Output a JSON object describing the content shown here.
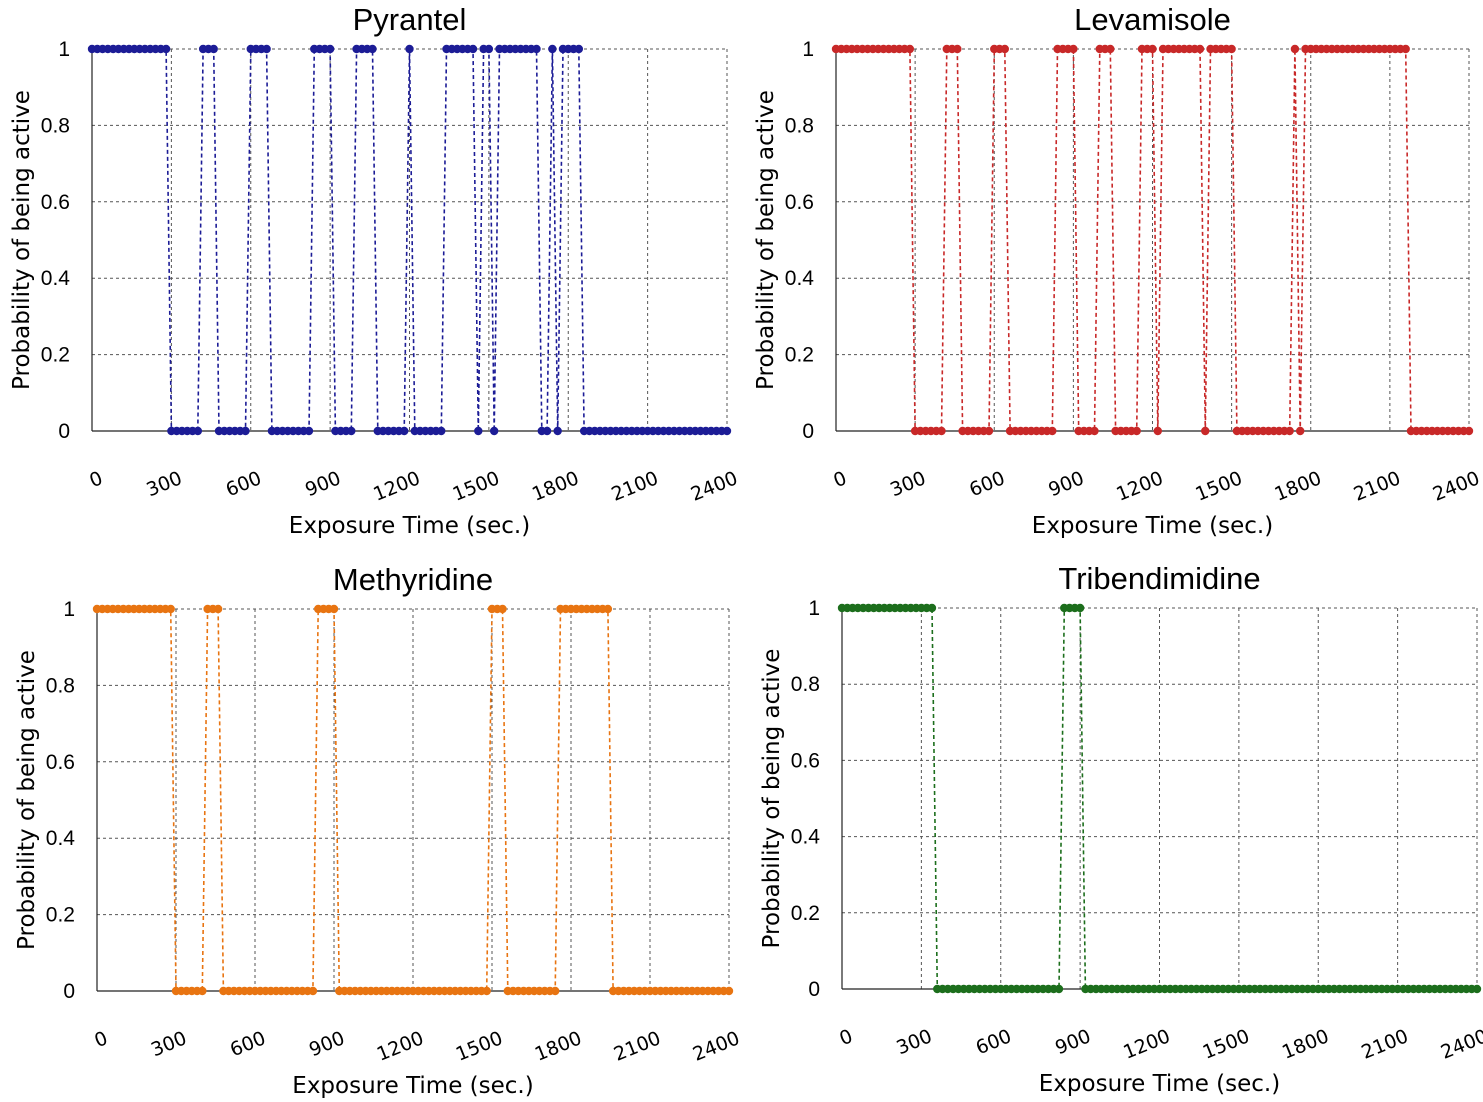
{
  "chart_data": [
    {
      "type": "line",
      "title": "Pyrantel",
      "xlabel": "Exposure Time (sec.)",
      "ylabel": "Probability of being active",
      "xlim": [
        0,
        2400
      ],
      "ylim": [
        0,
        1
      ],
      "x_ticks": [
        "0",
        "300",
        "600",
        "900",
        "1200",
        "1500",
        "1800",
        "2100",
        "2400"
      ],
      "y_ticks": [
        "0",
        "0.2",
        "0.4",
        "0.6",
        "0.8",
        "1"
      ],
      "grid": true,
      "color": "#1c1c96",
      "series": [
        {
          "x": [
            0,
            20,
            40,
            60,
            80,
            100,
            120,
            140,
            160,
            180,
            200,
            220,
            240,
            260,
            280,
            300,
            320,
            340,
            360,
            380,
            400,
            420,
            440,
            460,
            480,
            500,
            520,
            540,
            560,
            580,
            600,
            620,
            640,
            660,
            680,
            700,
            720,
            740,
            760,
            780,
            800,
            820,
            840,
            860,
            880,
            900,
            920,
            940,
            960,
            980,
            1000,
            1020,
            1040,
            1060,
            1080,
            1100,
            1120,
            1140,
            1160,
            1180,
            1200,
            1220,
            1240,
            1260,
            1280,
            1300,
            1320,
            1340,
            1360,
            1380,
            1400,
            1420,
            1440,
            1460,
            1480,
            1500,
            1520,
            1540,
            1560,
            1580,
            1600,
            1620,
            1640,
            1660,
            1680,
            1700,
            1720,
            1740,
            1760,
            1780,
            1800,
            1820,
            1840,
            1860,
            1880,
            1900,
            1920,
            1940,
            1960,
            1980,
            2000,
            2020,
            2040,
            2060,
            2080,
            2100,
            2120,
            2140,
            2160,
            2180,
            2200,
            2220,
            2240,
            2260,
            2280,
            2300,
            2320,
            2340,
            2360,
            2380,
            2400
          ],
          "y": [
            1,
            1,
            1,
            1,
            1,
            1,
            1,
            1,
            1,
            1,
            1,
            1,
            1,
            1,
            1,
            0,
            0,
            0,
            0,
            0,
            0,
            1,
            1,
            1,
            0,
            0,
            0,
            0,
            0,
            0,
            1,
            1,
            1,
            1,
            0,
            0,
            0,
            0,
            0,
            0,
            0,
            0,
            1,
            1,
            1,
            1,
            0,
            0,
            0,
            0,
            1,
            1,
            1,
            1,
            0,
            0,
            0,
            0,
            0,
            0,
            1,
            0,
            0,
            0,
            0,
            0,
            0,
            1,
            1,
            1,
            1,
            1,
            1,
            0,
            1,
            1,
            0,
            1,
            1,
            1,
            1,
            1,
            1,
            1,
            1,
            0,
            0,
            1,
            0,
            1,
            1,
            1,
            1,
            0,
            0,
            0,
            0,
            0,
            0,
            0,
            0,
            0,
            0,
            0,
            0,
            0,
            0,
            0,
            0,
            0,
            0,
            0,
            0,
            0,
            0,
            0,
            0,
            0,
            0,
            0,
            0
          ]
        }
      ]
    },
    {
      "type": "line",
      "title": "Levamisole",
      "xlabel": "Exposure Time (sec.)",
      "ylabel": "Probability of being active",
      "xlim": [
        0,
        2400
      ],
      "ylim": [
        0,
        1
      ],
      "x_ticks": [
        "0",
        "300",
        "600",
        "900",
        "1200",
        "1500",
        "1800",
        "2100",
        "2400"
      ],
      "y_ticks": [
        "0",
        "0.2",
        "0.4",
        "0.6",
        "0.8",
        "1"
      ],
      "grid": true,
      "color": "#c82828",
      "series": [
        {
          "x": [
            0,
            20,
            40,
            60,
            80,
            100,
            120,
            140,
            160,
            180,
            200,
            220,
            240,
            260,
            280,
            300,
            320,
            340,
            360,
            380,
            400,
            420,
            440,
            460,
            480,
            500,
            520,
            540,
            560,
            580,
            600,
            620,
            640,
            660,
            680,
            700,
            720,
            740,
            760,
            780,
            800,
            820,
            840,
            860,
            880,
            900,
            920,
            940,
            960,
            980,
            1000,
            1020,
            1040,
            1060,
            1080,
            1100,
            1120,
            1140,
            1160,
            1180,
            1200,
            1220,
            1240,
            1260,
            1280,
            1300,
            1320,
            1340,
            1360,
            1380,
            1400,
            1420,
            1440,
            1460,
            1480,
            1500,
            1520,
            1540,
            1560,
            1580,
            1600,
            1620,
            1640,
            1660,
            1680,
            1700,
            1720,
            1740,
            1760,
            1780,
            1800,
            1820,
            1840,
            1860,
            1880,
            1900,
            1920,
            1940,
            1960,
            1980,
            2000,
            2020,
            2040,
            2060,
            2080,
            2100,
            2120,
            2140,
            2160,
            2180,
            2200,
            2220,
            2240,
            2260,
            2280,
            2300,
            2320,
            2340,
            2360,
            2380,
            2400
          ],
          "y": [
            1,
            1,
            1,
            1,
            1,
            1,
            1,
            1,
            1,
            1,
            1,
            1,
            1,
            1,
            1,
            0,
            0,
            0,
            0,
            0,
            0,
            1,
            1,
            1,
            0,
            0,
            0,
            0,
            0,
            0,
            1,
            1,
            1,
            0,
            0,
            0,
            0,
            0,
            0,
            0,
            0,
            0,
            1,
            1,
            1,
            1,
            0,
            0,
            0,
            0,
            1,
            1,
            1,
            0,
            0,
            0,
            0,
            0,
            1,
            1,
            1,
            0,
            1,
            1,
            1,
            1,
            1,
            1,
            1,
            1,
            0,
            1,
            1,
            1,
            1,
            1,
            0,
            0,
            0,
            0,
            0,
            0,
            0,
            0,
            0,
            0,
            0,
            1,
            0,
            1,
            1,
            1,
            1,
            1,
            1,
            1,
            1,
            1,
            1,
            1,
            1,
            1,
            1,
            1,
            1,
            1,
            1,
            1,
            1,
            0,
            0,
            0,
            0,
            0,
            0,
            0,
            0,
            0,
            0,
            0,
            0
          ]
        }
      ]
    },
    {
      "type": "line",
      "title": "Methyridine",
      "xlabel": "Exposure Time (sec.)",
      "ylabel": "Probability of being active",
      "xlim": [
        0,
        2400
      ],
      "ylim": [
        0,
        1
      ],
      "x_ticks": [
        "0",
        "300",
        "600",
        "900",
        "1200",
        "1500",
        "1800",
        "2100",
        "2400"
      ],
      "y_ticks": [
        "0",
        "0.2",
        "0.4",
        "0.6",
        "0.8",
        "1"
      ],
      "grid": true,
      "color": "#e87411",
      "series": [
        {
          "x": [
            0,
            20,
            40,
            60,
            80,
            100,
            120,
            140,
            160,
            180,
            200,
            220,
            240,
            260,
            280,
            300,
            320,
            340,
            360,
            380,
            400,
            420,
            440,
            460,
            480,
            500,
            520,
            540,
            560,
            580,
            600,
            620,
            640,
            660,
            680,
            700,
            720,
            740,
            760,
            780,
            800,
            820,
            840,
            860,
            880,
            900,
            920,
            940,
            960,
            980,
            1000,
            1020,
            1040,
            1060,
            1080,
            1100,
            1120,
            1140,
            1160,
            1180,
            1200,
            1220,
            1240,
            1260,
            1280,
            1300,
            1320,
            1340,
            1360,
            1380,
            1400,
            1420,
            1440,
            1460,
            1480,
            1500,
            1520,
            1540,
            1560,
            1580,
            1600,
            1620,
            1640,
            1660,
            1680,
            1700,
            1720,
            1740,
            1760,
            1780,
            1800,
            1820,
            1840,
            1860,
            1880,
            1900,
            1920,
            1940,
            1960,
            1980,
            2000,
            2020,
            2040,
            2060,
            2080,
            2100,
            2120,
            2140,
            2160,
            2180,
            2200,
            2220,
            2240,
            2260,
            2280,
            2300,
            2320,
            2340,
            2360,
            2380,
            2400
          ],
          "y": [
            1,
            1,
            1,
            1,
            1,
            1,
            1,
            1,
            1,
            1,
            1,
            1,
            1,
            1,
            1,
            0,
            0,
            0,
            0,
            0,
            0,
            1,
            1,
            1,
            0,
            0,
            0,
            0,
            0,
            0,
            0,
            0,
            0,
            0,
            0,
            0,
            0,
            0,
            0,
            0,
            0,
            0,
            1,
            1,
            1,
            1,
            0,
            0,
            0,
            0,
            0,
            0,
            0,
            0,
            0,
            0,
            0,
            0,
            0,
            0,
            0,
            0,
            0,
            0,
            0,
            0,
            0,
            0,
            0,
            0,
            0,
            0,
            0,
            0,
            0,
            1,
            1,
            1,
            0,
            0,
            0,
            0,
            0,
            0,
            0,
            0,
            0,
            0,
            1,
            1,
            1,
            1,
            1,
            1,
            1,
            1,
            1,
            1,
            0,
            0,
            0,
            0,
            0,
            0,
            0,
            0,
            0,
            0,
            0,
            0,
            0,
            0,
            0,
            0,
            0,
            0,
            0,
            0,
            0,
            0,
            0
          ]
        }
      ]
    },
    {
      "type": "line",
      "title": "Tribendimidine",
      "xlabel": "Exposure Time (sec.)",
      "ylabel": "Probability of being active",
      "xlim": [
        0,
        2400
      ],
      "ylim": [
        0,
        1
      ],
      "x_ticks": [
        "0",
        "300",
        "600",
        "900",
        "1200",
        "1500",
        "1800",
        "2100",
        "2400"
      ],
      "y_ticks": [
        "0",
        "0.2",
        "0.4",
        "0.6",
        "0.8",
        "1"
      ],
      "grid": true,
      "color": "#1c6e1c",
      "series": [
        {
          "x": [
            0,
            20,
            40,
            60,
            80,
            100,
            120,
            140,
            160,
            180,
            200,
            220,
            240,
            260,
            280,
            300,
            320,
            340,
            360,
            380,
            400,
            420,
            440,
            460,
            480,
            500,
            520,
            540,
            560,
            580,
            600,
            620,
            640,
            660,
            680,
            700,
            720,
            740,
            760,
            780,
            800,
            820,
            840,
            860,
            880,
            900,
            920,
            940,
            960,
            980,
            1000,
            1020,
            1040,
            1060,
            1080,
            1100,
            1120,
            1140,
            1160,
            1180,
            1200,
            1220,
            1240,
            1260,
            1280,
            1300,
            1320,
            1340,
            1360,
            1380,
            1400,
            1420,
            1440,
            1460,
            1480,
            1500,
            1520,
            1540,
            1560,
            1580,
            1600,
            1620,
            1640,
            1660,
            1680,
            1700,
            1720,
            1740,
            1760,
            1780,
            1800,
            1820,
            1840,
            1860,
            1880,
            1900,
            1920,
            1940,
            1960,
            1980,
            2000,
            2020,
            2040,
            2060,
            2080,
            2100,
            2120,
            2140,
            2160,
            2180,
            2200,
            2220,
            2240,
            2260,
            2280,
            2300,
            2320,
            2340,
            2360,
            2380,
            2400
          ],
          "y": [
            1,
            1,
            1,
            1,
            1,
            1,
            1,
            1,
            1,
            1,
            1,
            1,
            1,
            1,
            1,
            1,
            1,
            1,
            0,
            0,
            0,
            0,
            0,
            0,
            0,
            0,
            0,
            0,
            0,
            0,
            0,
            0,
            0,
            0,
            0,
            0,
            0,
            0,
            0,
            0,
            0,
            0,
            1,
            1,
            1,
            1,
            0,
            0,
            0,
            0,
            0,
            0,
            0,
            0,
            0,
            0,
            0,
            0,
            0,
            0,
            0,
            0,
            0,
            0,
            0,
            0,
            0,
            0,
            0,
            0,
            0,
            0,
            0,
            0,
            0,
            0,
            0,
            0,
            0,
            0,
            0,
            0,
            0,
            0,
            0,
            0,
            0,
            0,
            0,
            0,
            0,
            0,
            0,
            0,
            0,
            0,
            0,
            0,
            0,
            0,
            0,
            0,
            0,
            0,
            0,
            0,
            0,
            0,
            0,
            0,
            0,
            0,
            0,
            0,
            0,
            0,
            0,
            0,
            0,
            0,
            0
          ]
        }
      ]
    }
  ]
}
